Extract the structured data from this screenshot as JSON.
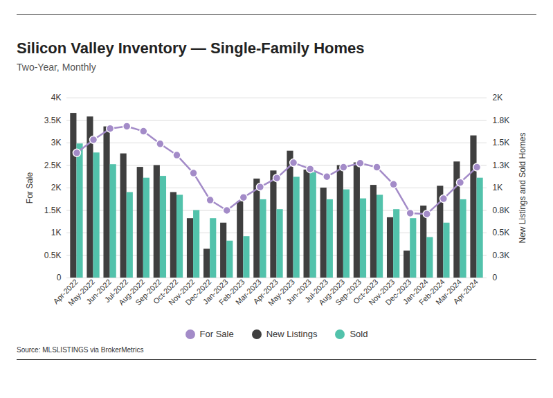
{
  "chart_data": {
    "type": "bar",
    "title": "Silicon Valley Inventory — Single-Family Homes",
    "subtitle": "Two-Year, Monthly",
    "source": "Source:  MLSLISTINGS via BrokerMetrics",
    "y_label": "For Sale",
    "y2_label": "New Listings and Sold Homes",
    "categories": [
      "Apr-2022",
      "May-2022",
      "Jun-2022",
      "Jul-2022",
      "Aug-2022",
      "Sep-2022",
      "Oct-2022",
      "Nov-2022",
      "Dec-2022",
      "Jan-2023",
      "Feb-2023",
      "Mar-2023",
      "Apr-2023",
      "May-2023",
      "Jun-2023",
      "Jul-2023",
      "Aug-2023",
      "Sep-2023",
      "Oct-2023",
      "Nov-2023",
      "Dec-2023",
      "Jan-2024",
      "Feb-2024",
      "Mar-2024",
      "Apr-2024"
    ],
    "series": [
      {
        "name": "For Sale",
        "type": "line",
        "marker": "circle",
        "color": "#a38bc8",
        "values": [
          2780,
          3070,
          3320,
          3370,
          3260,
          2980,
          2730,
          2330,
          1730,
          1500,
          1790,
          2020,
          2220,
          2560,
          2420,
          2250,
          2460,
          2550,
          2460,
          2080,
          1440,
          1420,
          1760,
          2120,
          2460
        ]
      },
      {
        "name": "New Listings",
        "type": "bar",
        "axis": "y2",
        "color": "#3f3f3f",
        "values": [
          1830,
          1790,
          1680,
          1380,
          1230,
          1250,
          950,
          660,
          320,
          610,
          850,
          1100,
          1190,
          1410,
          1200,
          1000,
          1250,
          1280,
          1030,
          670,
          300,
          800,
          1020,
          1290,
          1580
        ]
      },
      {
        "name": "Sold",
        "type": "bar",
        "axis": "y2",
        "color": "#52c2ab",
        "values": [
          1490,
          1390,
          1260,
          950,
          1110,
          1130,
          920,
          750,
          660,
          410,
          460,
          870,
          760,
          1120,
          1170,
          870,
          980,
          880,
          920,
          760,
          660,
          450,
          610,
          870,
          1110
        ]
      }
    ],
    "ylim": [
      0,
      4000
    ],
    "yticks": [
      0,
      {
        "value": 500,
        "label": "0.5K"
      },
      {
        "value": 1000,
        "label": "1K"
      },
      {
        "value": 1500,
        "label": "1.5K"
      },
      {
        "value": 2000,
        "label": "2K"
      },
      {
        "value": 2500,
        "label": "2.5K"
      },
      {
        "value": 3000,
        "label": "3K"
      },
      {
        "value": 3500,
        "label": "3.5K"
      },
      {
        "value": 4000,
        "label": "4K"
      }
    ],
    "y2lim": [
      0,
      2000
    ],
    "y2ticks": [
      0,
      {
        "value": 250,
        "label": "0.3K"
      },
      {
        "value": 500,
        "label": "0.5K"
      },
      {
        "value": 750,
        "label": "0.8K"
      },
      {
        "value": 1000,
        "label": "1K"
      },
      {
        "value": 1250,
        "label": "1.3K"
      },
      {
        "value": 1500,
        "label": "1.5K"
      },
      {
        "value": 1750,
        "label": "1.8K"
      },
      {
        "value": 2000,
        "label": "2K"
      }
    ],
    "grid": true,
    "legend": "bottom"
  }
}
